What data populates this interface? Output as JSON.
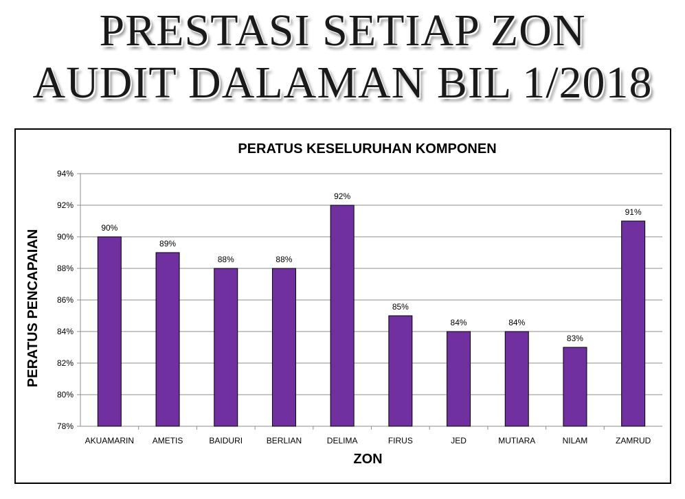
{
  "header": {
    "line1": "PRESTASI SETIAP ZON",
    "line2": "AUDIT DALAMAN BIL 1/2018"
  },
  "chart_data": {
    "type": "bar",
    "title": "PERATUS KESELURUHAN KOMPONEN",
    "xlabel": "ZON",
    "ylabel": "PERATUS PENCAPAIAN",
    "categories": [
      "AKUAMARIN",
      "AMETIS",
      "BAIDURI",
      "BERLIAN",
      "DELIMA",
      "FIRUS",
      "JED",
      "MUTIARA",
      "NILAM",
      "ZAMRUD"
    ],
    "values": [
      90,
      89,
      88,
      88,
      92,
      85,
      84,
      84,
      83,
      91
    ],
    "data_labels": [
      "90%",
      "89%",
      "88%",
      "88%",
      "92%",
      "85%",
      "84%",
      "84%",
      "83%",
      "91%"
    ],
    "ylim": [
      78,
      94
    ],
    "ytick_labels": [
      "78%",
      "80%",
      "82%",
      "84%",
      "86%",
      "88%",
      "90%",
      "92%",
      "94%"
    ],
    "grid": true,
    "bar_color": "#7030a0"
  }
}
